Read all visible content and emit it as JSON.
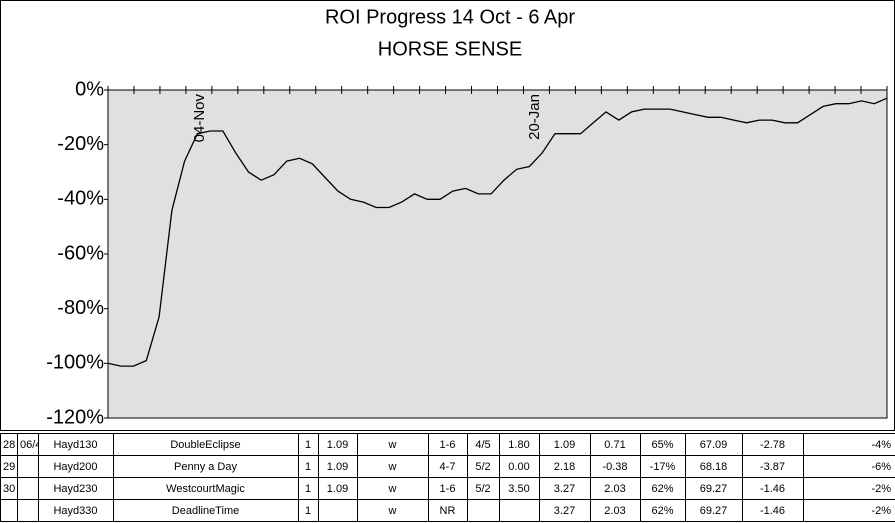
{
  "chart_data": {
    "type": "line",
    "title": "ROI Progress  14 Oct - 6 Apr",
    "subtitle": "HORSE SENSE",
    "annotations": [
      "04-Nov",
      "20-Jan"
    ],
    "color": "#000000",
    "background": "#e0e0e0",
    "values": [
      -100,
      -101,
      -101,
      -99,
      -83,
      -44,
      -26,
      -16,
      -15,
      -15,
      -23,
      -30,
      -33,
      -31,
      -26,
      -25,
      -27,
      -32,
      -37,
      -40,
      -41,
      -43,
      -43,
      -41,
      -38,
      -40,
      -40,
      -37,
      -36,
      -38,
      -38,
      -33,
      -29,
      -28,
      -23,
      -16,
      -16,
      -16,
      -12,
      -8,
      -11,
      -8,
      -7,
      -7,
      -7,
      -8,
      -9,
      -10,
      -10,
      -11,
      -12,
      -11,
      -11,
      -12,
      -12,
      -9,
      -6,
      -5,
      -5,
      -4,
      -5,
      -3
    ],
    "ylim": [
      -120,
      0
    ],
    "yticks": [
      {
        "value": -120,
        "label": "-120%"
      },
      {
        "value": -100,
        "label": "-100%"
      },
      {
        "value": -80,
        "label": "-80%"
      },
      {
        "value": -60,
        "label": "-60%"
      },
      {
        "value": -40,
        "label": "-40%"
      },
      {
        "value": -20,
        "label": "-20%"
      },
      {
        "value": 0,
        "label": "0%"
      }
    ]
  },
  "table": {
    "rows": [
      [
        "28",
        "06/4",
        "Hayd130",
        "DoubleEclipse",
        "1",
        "1.09",
        "w",
        "1-6",
        "4/5",
        "1.80",
        "1.09",
        "0.71",
        "65%",
        "67.09",
        "-2.78",
        "-4%"
      ],
      [
        "29",
        null,
        "Hayd200",
        "Penny a Day",
        "1",
        "1.09",
        "w",
        "4-7",
        "5/2",
        "0.00",
        "2.18",
        "-0.38",
        "-17%",
        "68.18",
        "-3.87",
        "-6%"
      ],
      [
        "30",
        null,
        "Hayd230",
        "WestcourtMagic",
        "1",
        "1.09",
        "w",
        "1-6",
        "5/2",
        "3.50",
        "3.27",
        "2.03",
        "62%",
        "69.27",
        "-1.46",
        "-2%"
      ],
      [
        null,
        null,
        "Hayd330",
        "DeadlineTime",
        "1",
        null,
        "w",
        "NR",
        null,
        null,
        "3.27",
        "2.03",
        "62%",
        "69.27",
        "-1.46",
        "-2%"
      ]
    ]
  }
}
